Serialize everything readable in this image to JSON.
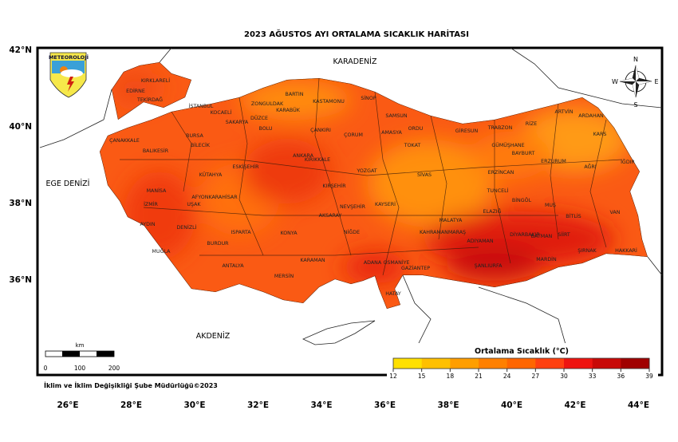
{
  "title": "2023 AĞUSTOS AYI ORTALAMA SICAKLIK HARİTASI",
  "logo_text": "METEOROLOJİ",
  "seas": {
    "north": "KARADENİZ",
    "west": "EGE DENİZİ",
    "south": "AKDENİZ"
  },
  "lon_ticks": [
    "26°E",
    "28°E",
    "30°E",
    "32°E",
    "34°E",
    "36°E",
    "38°E",
    "40°E",
    "42°E",
    "44°E"
  ],
  "lat_ticks": [
    "42°N",
    "40°N",
    "38°N",
    "36°N"
  ],
  "compass": {
    "n": "N",
    "s": "S",
    "e": "E",
    "w": "W"
  },
  "scale_bar": {
    "unit": "km",
    "labels": [
      "0",
      "100",
      "200"
    ]
  },
  "credit": "İklim ve İklim Değişikliği Şube Müdürlüğü©2023",
  "legend": {
    "title": "Ortalama Sıcaklık (°C)",
    "ticks": [
      "12",
      "15",
      "18",
      "21",
      "24",
      "27",
      "30",
      "33",
      "36",
      "39"
    ],
    "colors": [
      "#ffe000",
      "#ffc000",
      "#ff9e00",
      "#ff8000",
      "#ff6600",
      "#ff4010",
      "#ee1410",
      "#c80a08",
      "#a00000"
    ]
  },
  "provinces": [
    "KIRKLARELİ",
    "EDİRNE",
    "TEKİRDAĞ",
    "İSTANBUL",
    "KOCAELİ",
    "SAKARYA",
    "DÜZCE",
    "ZONGULDAK",
    "BARTIN",
    "KARABÜK",
    "KASTAMONU",
    "SİNOP",
    "SAMSUN",
    "ORDU",
    "GİRESUN",
    "TRABZON",
    "RİZE",
    "ARTVİN",
    "ARDAHAN",
    "KARS",
    "IĞDIR",
    "AĞRI",
    "ERZURUM",
    "BAYBURT",
    "GÜMÜŞHANE",
    "ERZİNCAN",
    "SİVAS",
    "TOKAT",
    "AMASYA",
    "ÇORUM",
    "ÇANKIRI",
    "BOLU",
    "ANKARA",
    "KIRIKKALE",
    "YOZGAT",
    "KIRŞEHİR",
    "NEVŞEHİR",
    "AKSARAY",
    "KAYSERİ",
    "NİĞDE",
    "KONYA",
    "KARAMAN",
    "MERSİN",
    "ADANA",
    "OSMANİYE",
    "HATAY",
    "GAZİANTEP",
    "KAHRAMANMARAŞ",
    "MALATYA",
    "ADIYAMAN",
    "ŞANLIURFA",
    "DİYARBAKIR",
    "MARDİN",
    "BATMAN",
    "SİİRT",
    "ŞIRNAK",
    "HAKKARİ",
    "VAN",
    "BİTLİS",
    "MUŞ",
    "BİNGÖL",
    "ELAZIĞ",
    "TUNCELİ",
    "ÇANAKKALE",
    "BALIKESİR",
    "BURSA",
    "BİLECİK",
    "ESKİŞEHİR",
    "KÜTAHYA",
    "AFYONKARAHİSAR",
    "UŞAK",
    "MANİSA",
    "İZMİR",
    "AYDIN",
    "DENİZLİ",
    "MUĞLA",
    "BURDUR",
    "ISPARTA",
    "ANTALYA"
  ]
}
